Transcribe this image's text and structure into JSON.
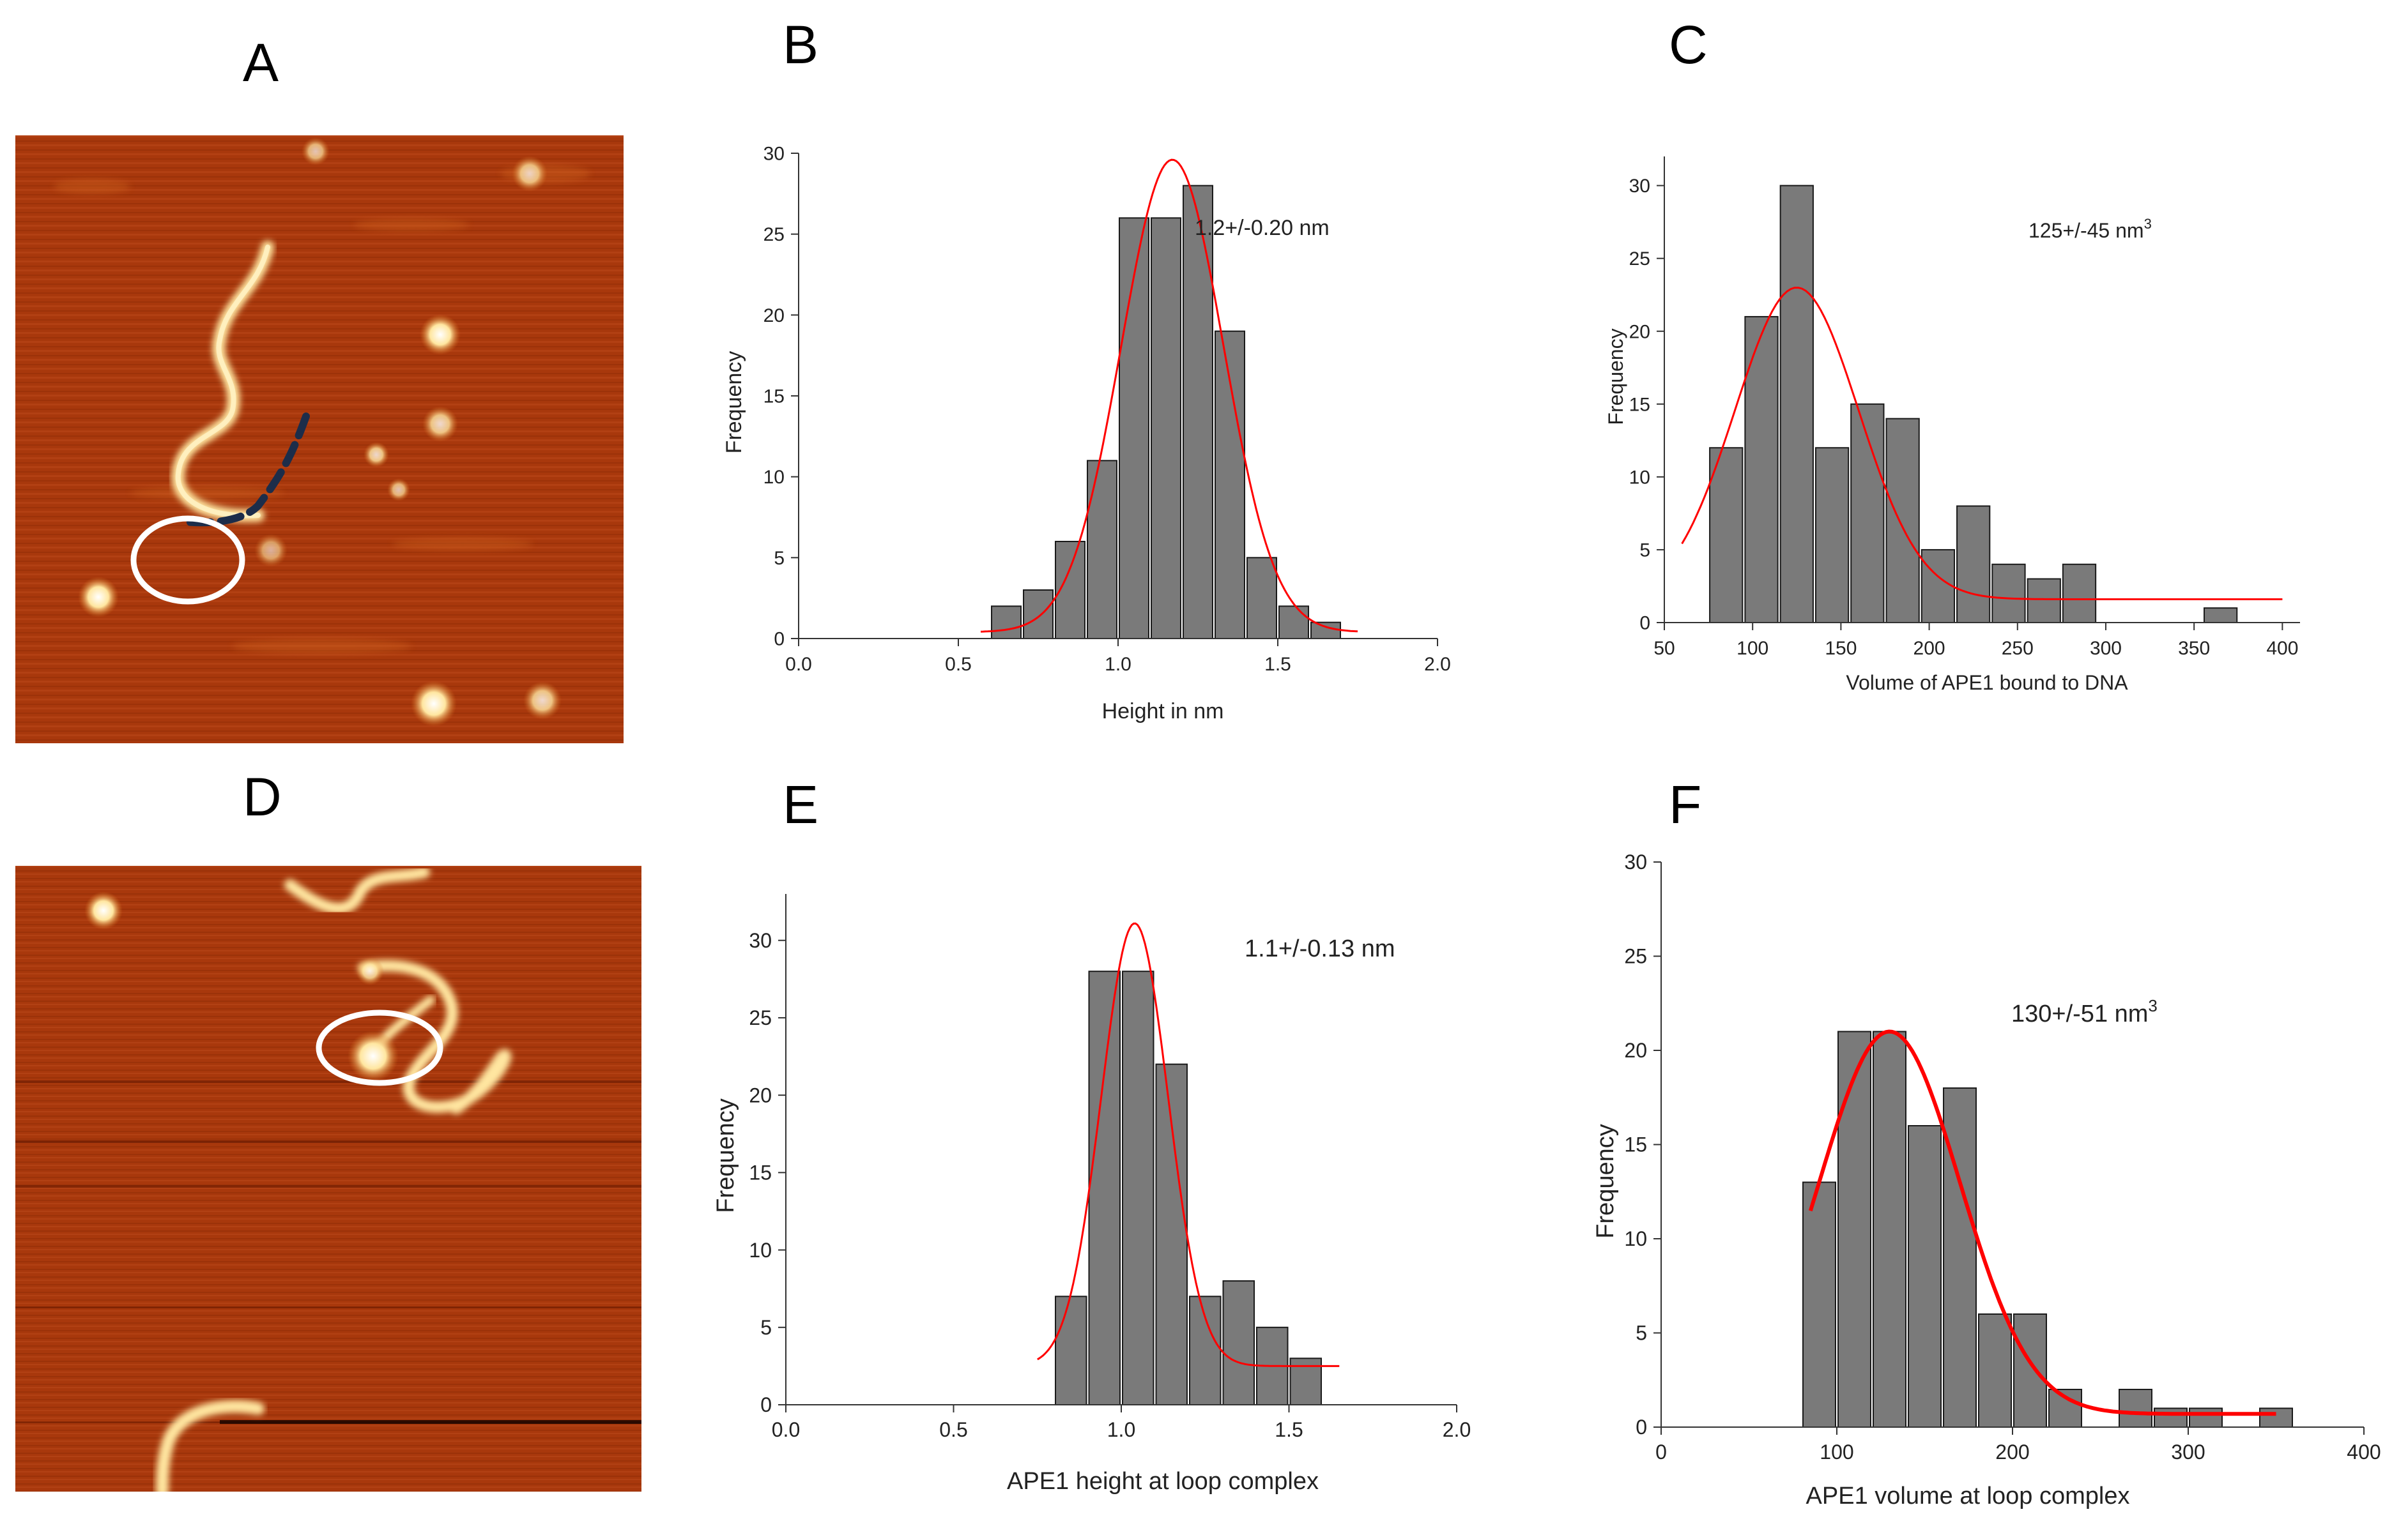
{
  "panels": {
    "A": "A",
    "B": "B",
    "C": "C",
    "D": "D",
    "E": "E",
    "F": "F"
  },
  "colors": {
    "bar_fill": "#7a7a7a",
    "bar_stroke": "#1a1a1a",
    "fit_line": "#ff0000",
    "afm_background": "#a8380c",
    "afm_bright": "#ffe6a0",
    "afm_loop_dashed": "#1c2d4a",
    "marker_ring": "#ffffff"
  },
  "chart_data": [
    {
      "id": "B",
      "type": "bar",
      "title": "",
      "annotation": "1.2+/-0.20 nm",
      "xlabel": "Height in nm",
      "ylabel": "Frequency",
      "xlim": [
        0.0,
        2.0
      ],
      "ylim": [
        0,
        30
      ],
      "xticks": [
        0.0,
        0.5,
        1.0,
        1.5,
        2.0
      ],
      "xtick_labels": [
        "0.0",
        "0.5",
        "1.0",
        "1.5",
        "2.0"
      ],
      "yticks": [
        0,
        5,
        10,
        15,
        20,
        25,
        30
      ],
      "ytick_labels": [
        "0",
        "5",
        "10",
        "15",
        "20",
        "25",
        "30"
      ],
      "bin_width": 0.1,
      "bars": [
        {
          "x": 0.65,
          "value": 2
        },
        {
          "x": 0.75,
          "value": 3
        },
        {
          "x": 0.85,
          "value": 6
        },
        {
          "x": 0.95,
          "value": 11
        },
        {
          "x": 1.05,
          "value": 26
        },
        {
          "x": 1.15,
          "value": 26
        },
        {
          "x": 1.25,
          "value": 28
        },
        {
          "x": 1.35,
          "value": 19
        },
        {
          "x": 1.45,
          "value": 5
        },
        {
          "x": 1.55,
          "value": 2
        },
        {
          "x": 1.65,
          "value": 1
        }
      ],
      "fit": {
        "kind": "gaussian",
        "mean": 1.17,
        "sigma": 0.16,
        "amplitude": 29.2,
        "offset": 0.4,
        "range": [
          0.57,
          1.75
        ]
      }
    },
    {
      "id": "C",
      "type": "bar",
      "title": "",
      "annotation": "125+/-45 nm",
      "annotation_sup": "3",
      "xlabel": "Volume of APE1 bound to DNA",
      "ylabel": "Frequency",
      "xlim": [
        50,
        410
      ],
      "ylim": [
        0,
        32
      ],
      "xticks": [
        50,
        100,
        150,
        200,
        250,
        300,
        350,
        400
      ],
      "xtick_labels": [
        "50",
        "100",
        "150",
        "200",
        "250",
        "300",
        "350",
        "400"
      ],
      "yticks": [
        0,
        5,
        10,
        15,
        20,
        25,
        30
      ],
      "ytick_labels": [
        "0",
        "5",
        "10",
        "15",
        "20",
        "25",
        "30"
      ],
      "bin_width": 20,
      "bars": [
        {
          "x": 85,
          "value": 12
        },
        {
          "x": 105,
          "value": 21
        },
        {
          "x": 125,
          "value": 30
        },
        {
          "x": 145,
          "value": 12
        },
        {
          "x": 165,
          "value": 15
        },
        {
          "x": 185,
          "value": 14
        },
        {
          "x": 205,
          "value": 5
        },
        {
          "x": 225,
          "value": 8
        },
        {
          "x": 245,
          "value": 4
        },
        {
          "x": 265,
          "value": 3
        },
        {
          "x": 285,
          "value": 4
        },
        {
          "x": 365,
          "value": 1
        }
      ],
      "fit": {
        "kind": "gaussian",
        "mean": 125,
        "sigma": 35,
        "amplitude": 21.4,
        "offset": 1.6,
        "range": [
          60,
          400
        ]
      }
    },
    {
      "id": "E",
      "type": "bar",
      "title": "",
      "annotation": "1.1+/-0.13 nm",
      "xlabel": "APE1 height at loop complex",
      "ylabel": "Frequency",
      "xlim": [
        0.0,
        2.0
      ],
      "ylim": [
        0,
        33
      ],
      "xticks": [
        0.0,
        0.5,
        1.0,
        1.5,
        2.0
      ],
      "xtick_labels": [
        "0.0",
        "0.5",
        "1.0",
        "1.5",
        "2.0"
      ],
      "yticks": [
        0,
        5,
        10,
        15,
        20,
        25,
        30
      ],
      "ytick_labels": [
        "0",
        "5",
        "10",
        "15",
        "20",
        "25",
        "30"
      ],
      "bin_width": 0.1,
      "bars": [
        {
          "x": 0.85,
          "value": 7
        },
        {
          "x": 0.95,
          "value": 28
        },
        {
          "x": 1.05,
          "value": 28
        },
        {
          "x": 1.15,
          "value": 22
        },
        {
          "x": 1.25,
          "value": 7
        },
        {
          "x": 1.35,
          "value": 8
        },
        {
          "x": 1.45,
          "value": 5
        },
        {
          "x": 1.55,
          "value": 3
        }
      ],
      "fit": {
        "kind": "gaussian",
        "mean": 1.04,
        "sigma": 0.1,
        "amplitude": 28.6,
        "offset": 2.5,
        "range": [
          0.75,
          1.65
        ]
      }
    },
    {
      "id": "F",
      "type": "bar",
      "title": "",
      "annotation": "130+/-51 nm",
      "annotation_sup": "3",
      "xlabel": "APE1 volume at loop complex",
      "ylabel": "Frequency",
      "xlim": [
        0,
        400
      ],
      "ylim": [
        0,
        30
      ],
      "xticks": [
        0,
        100,
        200,
        300,
        400
      ],
      "xtick_labels": [
        "0",
        "100",
        "200",
        "300",
        "400"
      ],
      "yticks": [
        0,
        5,
        10,
        15,
        20,
        25,
        30
      ],
      "ytick_labels": [
        "0",
        "5",
        "10",
        "15",
        "20",
        "25",
        "30"
      ],
      "bin_width": 20,
      "bars": [
        {
          "x": 90,
          "value": 13
        },
        {
          "x": 110,
          "value": 21
        },
        {
          "x": 130,
          "value": 21
        },
        {
          "x": 150,
          "value": 16
        },
        {
          "x": 170,
          "value": 18
        },
        {
          "x": 190,
          "value": 6
        },
        {
          "x": 210,
          "value": 6
        },
        {
          "x": 230,
          "value": 2
        },
        {
          "x": 270,
          "value": 2
        },
        {
          "x": 290,
          "value": 1
        },
        {
          "x": 310,
          "value": 1
        },
        {
          "x": 350,
          "value": 1
        }
      ],
      "fit": {
        "kind": "gaussian",
        "mean": 130,
        "sigma": 40,
        "amplitude": 20.3,
        "offset": 0.7,
        "range": [
          85,
          350
        ]
      }
    }
  ]
}
